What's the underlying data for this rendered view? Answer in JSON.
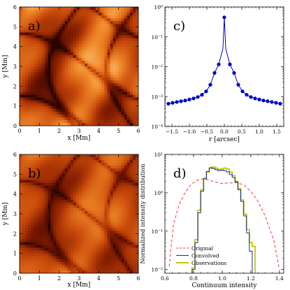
{
  "panels": {
    "a": {
      "label": "a)",
      "xlabel": "x [Mm]",
      "ylabel": "y [Mm]",
      "xticks": [
        "0",
        "1",
        "2",
        "3",
        "4",
        "5",
        "6"
      ],
      "yticks": [
        "0",
        "1",
        "2",
        "3",
        "4",
        "5",
        "6"
      ]
    },
    "b": {
      "label": "b)",
      "xlabel": "x [Mm]",
      "ylabel": "y [Mm]",
      "xticks": [
        "0",
        "1",
        "2",
        "3",
        "4",
        "5",
        "6"
      ],
      "yticks": [
        "0",
        "1",
        "2",
        "3",
        "4",
        "5",
        "6"
      ]
    },
    "c": {
      "label": "c)",
      "xlabel": "r [arcsec]"
    },
    "d": {
      "label": "d)",
      "xlabel": "Continuum intensity",
      "ylabel": "Normalized intensity distribution"
    }
  },
  "chart_data": [
    {
      "type": "heatmap",
      "panel": "a",
      "xlabel": "x [Mm]",
      "ylabel": "y [Mm]",
      "xlim": [
        0,
        6
      ],
      "ylim": [
        0,
        6
      ],
      "colormap": [
        "#2a0500",
        "#7a1800",
        "#c84a0a",
        "#f08a2a",
        "#ffe8b0"
      ]
    },
    {
      "type": "heatmap",
      "panel": "b",
      "xlabel": "x [Mm]",
      "ylabel": "y [Mm]",
      "xlim": [
        0,
        6
      ],
      "ylim": [
        0,
        6
      ],
      "colormap": [
        "#2a0500",
        "#7a1800",
        "#c84a0a",
        "#f08a2a",
        "#ffe8b0"
      ]
    },
    {
      "type": "line",
      "panel": "c",
      "xlabel": "r [arcsec]",
      "ylabel": "",
      "xlim": [
        -1.7,
        1.7
      ],
      "ylim": [
        0.0001,
        1
      ],
      "yscale": "log",
      "xticks": [
        -1.5,
        -1.0,
        -0.5,
        0.0,
        0.5,
        1.0,
        1.5
      ],
      "xtick_labels": [
        "−1.5",
        "−1.0",
        "−0.5",
        "0.0",
        "0.5",
        "1.0",
        "1.5"
      ],
      "yticks": [
        0.0001,
        0.001,
        0.01,
        0.1,
        1
      ],
      "ytick_labels": [
        "10⁻⁴",
        "10⁻³",
        "10⁻²",
        "10⁻¹",
        "10⁰"
      ],
      "series": [
        {
          "color": "#0000cc",
          "marker": "circle",
          "x": [
            -1.6,
            -1.48,
            -1.36,
            -1.24,
            -1.12,
            -1.0,
            -0.88,
            -0.76,
            -0.64,
            -0.52,
            -0.4,
            -0.28,
            -0.16,
            -0.04,
            0.0,
            0.04,
            0.16,
            0.28,
            0.4,
            0.52,
            0.64,
            0.76,
            0.88,
            1.0,
            1.12,
            1.24,
            1.36,
            1.48,
            1.6
          ],
          "y": [
            0.00058,
            0.00062,
            0.00066,
            0.0007,
            0.00074,
            0.0008,
            0.00087,
            0.00097,
            0.00115,
            0.0015,
            0.0025,
            0.0062,
            0.012,
            0.04,
            0.45,
            0.04,
            0.012,
            0.0062,
            0.0025,
            0.0015,
            0.00115,
            0.00097,
            0.00087,
            0.0008,
            0.00074,
            0.0007,
            0.00066,
            0.00062,
            0.00058
          ],
          "marker_x": [
            -1.6,
            -1.48,
            -1.36,
            -1.24,
            -1.12,
            -1.0,
            -0.88,
            -0.76,
            -0.64,
            -0.52,
            -0.4,
            -0.28,
            -0.16,
            0.0,
            0.16,
            0.28,
            0.4,
            0.52,
            0.64,
            0.76,
            0.88,
            1.0,
            1.12,
            1.24,
            1.36,
            1.48,
            1.6
          ]
        }
      ]
    },
    {
      "type": "line",
      "panel": "d",
      "xlabel": "Continuum intensity",
      "ylabel": "Normalized intensity distribution",
      "xlim": [
        0.6,
        1.43
      ],
      "ylim": [
        0.008,
        10
      ],
      "yscale": "log",
      "xticks": [
        0.6,
        0.8,
        1.0,
        1.2,
        1.4
      ],
      "xtick_labels": [
        "0.6",
        "0.8",
        "1.0",
        "1.2",
        "1.4"
      ],
      "yticks": [
        0.01,
        0.1,
        1,
        10
      ],
      "ytick_labels": [
        "10⁻²",
        "10⁻¹",
        "10⁰",
        "10¹"
      ],
      "legend_position": "lower-left",
      "series": [
        {
          "name": "Original",
          "color": "#ff3333",
          "style": "dashed",
          "x": [
            0.63,
            0.64,
            0.66,
            0.7,
            0.74,
            0.78,
            0.82,
            0.86,
            0.9,
            0.95,
            1.0,
            1.05,
            1.1,
            1.15,
            1.2,
            1.25,
            1.3,
            1.33,
            1.36,
            1.38,
            1.4
          ],
          "y": [
            0.012,
            0.03,
            0.15,
            0.5,
            1.0,
            1.6,
            2.1,
            2.3,
            2.2,
            1.9,
            1.75,
            1.8,
            1.85,
            1.6,
            1.1,
            0.6,
            0.25,
            0.12,
            0.06,
            0.025,
            0.01
          ]
        },
        {
          "name": "Convolved",
          "color": "#1030a0",
          "style": "step",
          "x": [
            0.8,
            0.82,
            0.84,
            0.86,
            0.88,
            0.9,
            0.92,
            0.94,
            0.96,
            0.98,
            1.0,
            1.02,
            1.04,
            1.06,
            1.08,
            1.1,
            1.12,
            1.14,
            1.16,
            1.18,
            1.2
          ],
          "y": [
            0.01,
            0.05,
            0.3,
            1.1,
            2.3,
            3.6,
            4.5,
            4.3,
            4.0,
            3.8,
            3.9,
            3.8,
            3.5,
            3.0,
            2.5,
            1.9,
            1.2,
            0.6,
            0.25,
            0.09,
            0.03
          ]
        },
        {
          "name": "Observations",
          "color": "#c8c800",
          "style": "step",
          "x": [
            0.8,
            0.82,
            0.84,
            0.86,
            0.88,
            0.9,
            0.92,
            0.94,
            0.96,
            0.98,
            1.0,
            1.02,
            1.04,
            1.06,
            1.08,
            1.1,
            1.12,
            1.14,
            1.16,
            1.18,
            1.2,
            1.22
          ],
          "y": [
            0.011,
            0.06,
            0.35,
            1.2,
            2.4,
            3.5,
            4.4,
            4.7,
            4.4,
            4.1,
            4.2,
            4.4,
            4.2,
            3.5,
            2.8,
            2.0,
            1.3,
            0.65,
            0.28,
            0.11,
            0.05,
            0.04
          ]
        }
      ]
    }
  ]
}
